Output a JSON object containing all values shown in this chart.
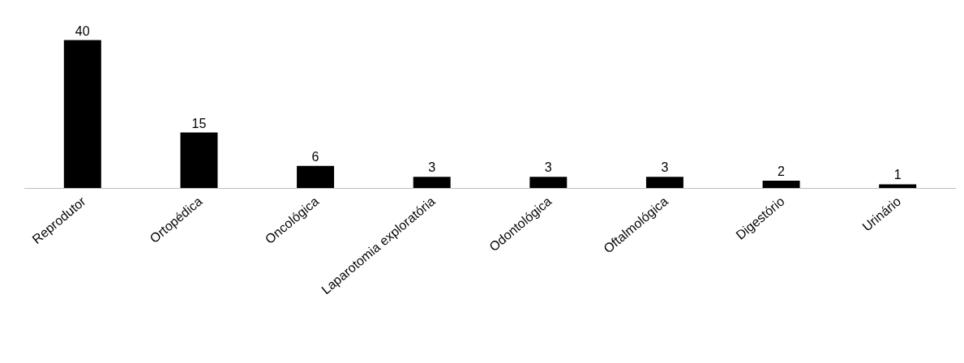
{
  "chart_data": {
    "type": "bar",
    "categories": [
      "Reprodutor",
      "Ortopédica",
      "Oncológica",
      "Laparotomia exploratória",
      "Odontológica",
      "Oftalmológica",
      "Digestório",
      "Urinário"
    ],
    "values": [
      40,
      15,
      6,
      3,
      3,
      3,
      2,
      1
    ],
    "color": "#000000",
    "data_labels": true,
    "grid": false,
    "legend": false
  }
}
